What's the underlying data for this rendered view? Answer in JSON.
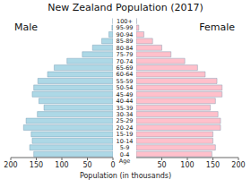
{
  "chart_data": [
    {
      "type": "bar",
      "orientation": "horizontal",
      "title": "New Zealand Population (2017)",
      "xlabel": "Population (in thousands)",
      "ylabel": "Age",
      "categories": [
        "0-4",
        "5-9",
        "10-14",
        "15-19",
        "20-24",
        "25-29",
        "30-34",
        "35-39",
        "40-44",
        "45-49",
        "50-54",
        "55-59",
        "60-64",
        "65-69",
        "70-74",
        "75-79",
        "80-84",
        "85-89",
        "90-94",
        "95-99",
        "100+"
      ],
      "series": [
        {
          "name": "Male",
          "color": "#add8e6",
          "values": [
            155,
            163,
            158,
            160,
            175,
            170,
            148,
            135,
            145,
            158,
            155,
            147,
            128,
            115,
            90,
            60,
            40,
            22,
            8,
            2,
            0.2
          ]
        }
      ],
      "xlim": [
        0,
        200
      ],
      "xticks": [
        0,
        50,
        100,
        150,
        200
      ]
    },
    {
      "type": "bar",
      "orientation": "horizontal",
      "categories": [
        "0-4",
        "5-9",
        "10-14",
        "15-19",
        "20-24",
        "25-29",
        "30-34",
        "35-39",
        "40-44",
        "45-49",
        "50-54",
        "55-59",
        "60-64",
        "65-69",
        "70-74",
        "75-79",
        "80-84",
        "85-89",
        "90-94",
        "95-99",
        "100+"
      ],
      "series": [
        {
          "name": "Female",
          "color": "#ffc0cb",
          "values": [
            148,
            155,
            150,
            150,
            165,
            165,
            160,
            145,
            155,
            168,
            168,
            158,
            135,
            120,
            95,
            68,
            50,
            32,
            15,
            5,
            0.5
          ]
        }
      ],
      "xlim": [
        0,
        200
      ],
      "xticks": [
        50,
        100,
        150,
        200
      ]
    }
  ]
}
